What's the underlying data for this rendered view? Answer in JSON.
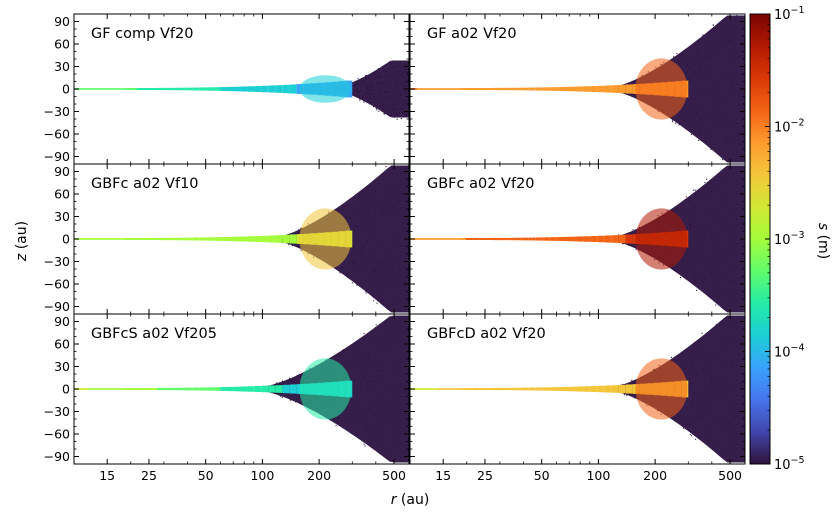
{
  "chart_data": {
    "type": "scatter",
    "xlabel_var": "r",
    "xlabel_unit": " (au)",
    "ylabel_var": "z",
    "ylabel_unit": " (au)",
    "x_scale": "log",
    "xlim": [
      10,
      600
    ],
    "ylim": [
      -100,
      100
    ],
    "xticks": [
      15,
      25,
      50,
      100,
      200,
      500
    ],
    "xtick_labels": [
      "15",
      "25",
      "50",
      "100",
      "200",
      "500"
    ],
    "yticks": [
      90,
      60,
      30,
      0,
      -30,
      -60,
      -90
    ],
    "ytick_labels": [
      "90",
      "60",
      "30",
      "0",
      "−30",
      "−60",
      "−90"
    ],
    "colorbar": {
      "label_var": "s",
      "label_unit": " (m)",
      "scale": "log",
      "range": [
        1e-05,
        0.1
      ],
      "tick_bases": [
        "10",
        "10",
        "10",
        "10",
        "10"
      ],
      "tick_exps": [
        "−1",
        "−2",
        "−3",
        "−4",
        "−5"
      ],
      "tick_values": [
        0.1,
        0.01,
        0.001,
        0.0001,
        1e-05
      ],
      "colormap": "turbo",
      "colors": [
        "#30123b",
        "#4145ab",
        "#4675ed",
        "#39a2fc",
        "#1bcfd4",
        "#24eca6",
        "#61fc6c",
        "#a4fc3b",
        "#d1e834",
        "#f3c63a",
        "#fe9b2d",
        "#f36315",
        "#d93806",
        "#b11901",
        "#7a0402"
      ]
    },
    "panels": [
      {
        "label": "GF comp Vf20",
        "disk_edge_r": 300,
        "halo_start_r": 250,
        "max_z": 35,
        "inner_log_s": -3.2,
        "outer_log_s": -4.2,
        "halo_color": "#2a1240"
      },
      {
        "label": "GF a02 Vf20",
        "disk_edge_r": 300,
        "halo_start_r": 120,
        "max_z": 95,
        "inner_log_s": -2.0,
        "outer_log_s": -2.2,
        "halo_color": "#2a1240"
      },
      {
        "label": "GBFc a02 Vf10",
        "disk_edge_r": 300,
        "halo_start_r": 120,
        "max_z": 95,
        "inner_log_s": -3.1,
        "outer_log_s": -2.8,
        "halo_color": "#2a1240"
      },
      {
        "label": "GBFc a02 Vf20",
        "disk_edge_r": 300,
        "halo_start_r": 120,
        "max_z": 95,
        "inner_log_s": -2.1,
        "outer_log_s": -1.6,
        "halo_color": "#2a1240"
      },
      {
        "label": "GBFcS a02 Vf205",
        "disk_edge_r": 300,
        "halo_start_r": 100,
        "max_z": 95,
        "inner_log_s": -2.8,
        "outer_log_s": -4.0,
        "halo_color": "#2a1240"
      },
      {
        "label": "GBFcD a02 Vf20",
        "disk_edge_r": 300,
        "halo_start_r": 120,
        "max_z": 95,
        "inner_log_s": -2.6,
        "outer_log_s": -2.3,
        "halo_color": "#2a1240"
      }
    ]
  }
}
